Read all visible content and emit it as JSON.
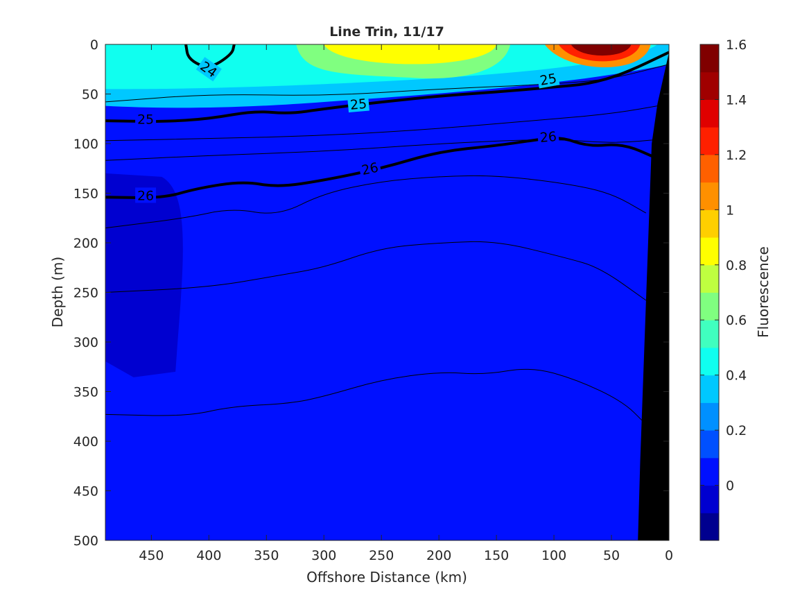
{
  "chart_data": {
    "type": "heatmap",
    "title": "Line Trin, 11/17",
    "xlabel": "Offshore Distance (km)",
    "ylabel": "Depth (m)",
    "xlim": [
      490,
      0
    ],
    "ylim": [
      0,
      500
    ],
    "x_reversed": true,
    "y_reversed": true,
    "x_ticks": [
      450,
      400,
      350,
      300,
      250,
      200,
      150,
      100,
      50,
      0
    ],
    "y_ticks": [
      0,
      50,
      100,
      150,
      200,
      250,
      300,
      350,
      400,
      450,
      500
    ],
    "colorbar": {
      "label": "Fluorescence",
      "range": [
        -0.2,
        1.6
      ],
      "ticks": [
        0,
        0.2,
        0.4,
        0.6,
        0.8,
        1,
        1.2,
        1.4,
        1.6
      ],
      "tick_labels": [
        "0",
        "0.2",
        "0.4",
        "0.6",
        "0.8",
        "1",
        "1.2",
        "1.4",
        "1.6"
      ],
      "levels": [
        -0.2,
        -0.1,
        0,
        0.1,
        0.2,
        0.3,
        0.4,
        0.5,
        0.6,
        0.7,
        0.8,
        0.9,
        1.0,
        1.1,
        1.2,
        1.3,
        1.4,
        1.5,
        1.6
      ],
      "colors": [
        "#00008f",
        "#0000d0",
        "#0010ff",
        "#0050ff",
        "#0090ff",
        "#00c8ff",
        "#10ffef",
        "#40ffbf",
        "#80ff80",
        "#bfff40",
        "#ffff00",
        "#ffcf00",
        "#ff9000",
        "#ff6000",
        "#ff2000",
        "#e00000",
        "#a00000",
        "#800000"
      ]
    },
    "fluorescence_regions": [
      {
        "name": "background",
        "value": 0.05
      },
      {
        "name": "offshore-deep-low",
        "value": -0.05,
        "x": [
          490,
          420
        ],
        "depth": [
          130,
          330
        ]
      },
      {
        "name": "upper-layer",
        "value": 0.3,
        "depth": [
          0,
          65
        ]
      },
      {
        "name": "surface-bloom-mid",
        "value": 0.8,
        "x": [
          300,
          150
        ],
        "depth": [
          0,
          30
        ]
      },
      {
        "name": "surface-bloom-nearshore",
        "value": 1.5,
        "x": [
          90,
          40
        ],
        "depth": [
          0,
          15
        ]
      }
    ],
    "density_contours": [
      {
        "label": "24",
        "bold": true,
        "points": [
          [
            420,
            0
          ],
          [
            418,
            15
          ],
          [
            400,
            25
          ],
          [
            380,
            10
          ],
          [
            378,
            0
          ]
        ]
      },
      {
        "label": "",
        "bold": false,
        "points": [
          [
            490,
            58
          ],
          [
            400,
            50
          ],
          [
            300,
            52
          ],
          [
            200,
            45
          ],
          [
            100,
            40
          ],
          [
            50,
            35
          ],
          [
            0,
            20
          ]
        ]
      },
      {
        "label": "25",
        "bold": true,
        "points": [
          [
            490,
            77
          ],
          [
            440,
            78
          ],
          [
            400,
            75
          ],
          [
            360,
            67
          ],
          [
            330,
            70
          ],
          [
            300,
            65
          ],
          [
            250,
            58
          ],
          [
            200,
            52
          ],
          [
            150,
            48
          ],
          [
            100,
            43
          ],
          [
            70,
            40
          ],
          [
            40,
            30
          ],
          [
            0,
            8
          ]
        ]
      },
      {
        "label": "",
        "bold": false,
        "points": [
          [
            490,
            97
          ],
          [
            400,
            95
          ],
          [
            300,
            92
          ],
          [
            200,
            85
          ],
          [
            100,
            75
          ],
          [
            50,
            70
          ],
          [
            0,
            60
          ]
        ]
      },
      {
        "label": "",
        "bold": false,
        "points": [
          [
            490,
            117
          ],
          [
            400,
            112
          ],
          [
            300,
            108
          ],
          [
            200,
            100
          ],
          [
            100,
            95
          ],
          [
            50,
            100
          ],
          [
            0,
            95
          ]
        ]
      },
      {
        "label": "26",
        "bold": true,
        "points": [
          [
            490,
            154
          ],
          [
            440,
            155
          ],
          [
            410,
            145
          ],
          [
            370,
            138
          ],
          [
            340,
            144
          ],
          [
            300,
            137
          ],
          [
            250,
            125
          ],
          [
            200,
            108
          ],
          [
            150,
            102
          ],
          [
            120,
            97
          ],
          [
            95,
            93
          ],
          [
            70,
            103
          ],
          [
            40,
            100
          ],
          [
            10,
            115
          ]
        ]
      },
      {
        "label": "",
        "bold": false,
        "points": [
          [
            490,
            185
          ],
          [
            420,
            175
          ],
          [
            380,
            165
          ],
          [
            340,
            173
          ],
          [
            300,
            150
          ],
          [
            250,
            138
          ],
          [
            200,
            133
          ],
          [
            150,
            132
          ],
          [
            90,
            140
          ],
          [
            50,
            150
          ],
          [
            20,
            170
          ]
        ]
      },
      {
        "label": "",
        "bold": false,
        "points": [
          [
            490,
            250
          ],
          [
            400,
            245
          ],
          [
            340,
            233
          ],
          [
            300,
            225
          ],
          [
            250,
            205
          ],
          [
            200,
            200
          ],
          [
            150,
            198
          ],
          [
            90,
            215
          ],
          [
            60,
            225
          ],
          [
            20,
            258
          ]
        ]
      },
      {
        "label": "",
        "bold": false,
        "points": [
          [
            490,
            373
          ],
          [
            420,
            375
          ],
          [
            380,
            365
          ],
          [
            330,
            362
          ],
          [
            300,
            355
          ],
          [
            250,
            338
          ],
          [
            200,
            330
          ],
          [
            160,
            333
          ],
          [
            120,
            325
          ],
          [
            80,
            338
          ],
          [
            40,
            360
          ],
          [
            20,
            383
          ]
        ]
      }
    ],
    "bathymetry": {
      "color": "#000000",
      "surface_x": 0,
      "points": [
        [
          0,
          8
        ],
        [
          10,
          60
        ],
        [
          15,
          100
        ],
        [
          20,
          260
        ],
        [
          25,
          420
        ],
        [
          27,
          500
        ]
      ]
    }
  }
}
